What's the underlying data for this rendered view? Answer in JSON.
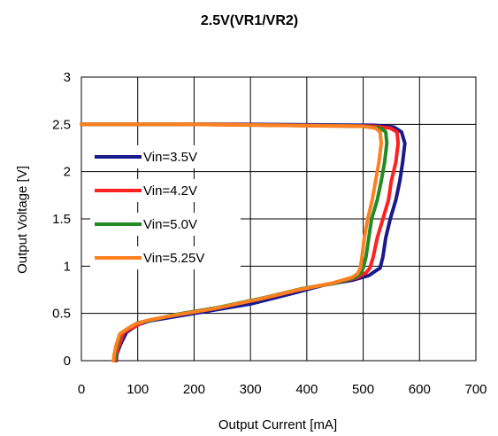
{
  "chart_data": {
    "type": "line",
    "title": "2.5V(VR1/VR2)",
    "xlabel": "Output Current [mA]",
    "ylabel": "Output Voltage [V]",
    "xlim": [
      0,
      700
    ],
    "ylim": [
      0,
      3
    ],
    "x_ticks": [
      0,
      100,
      200,
      300,
      400,
      500,
      600,
      700
    ],
    "y_ticks": [
      0,
      0.5,
      1,
      1.5,
      2,
      2.5,
      3
    ],
    "x_tick_labels": [
      "0",
      "100",
      "200",
      "300",
      "400",
      "500",
      "600",
      "700"
    ],
    "y_tick_labels": [
      "0",
      "0.5",
      "1",
      "1.5",
      "2",
      "2.5",
      "3"
    ],
    "grid": true,
    "legend_position": "left",
    "series": [
      {
        "name": "Vin=3.5V",
        "color": "#1a1a8c",
        "points": [
          [
            0,
            2.5
          ],
          [
            280,
            2.5
          ],
          [
            520,
            2.49
          ],
          [
            555,
            2.47
          ],
          [
            568,
            2.42
          ],
          [
            574,
            2.3
          ],
          [
            570,
            2.1
          ],
          [
            565,
            1.9
          ],
          [
            558,
            1.7
          ],
          [
            548,
            1.5
          ],
          [
            540,
            1.3
          ],
          [
            535,
            1.1
          ],
          [
            530,
            0.98
          ],
          [
            522,
            0.95
          ],
          [
            510,
            0.9
          ],
          [
            480,
            0.85
          ],
          [
            430,
            0.8
          ],
          [
            380,
            0.72
          ],
          [
            300,
            0.6
          ],
          [
            220,
            0.52
          ],
          [
            150,
            0.45
          ],
          [
            120,
            0.42
          ],
          [
            100,
            0.38
          ],
          [
            80,
            0.3
          ],
          [
            70,
            0.18
          ],
          [
            63,
            0.07
          ],
          [
            62,
            0
          ]
        ]
      },
      {
        "name": "Vin=4.2V",
        "color": "#ff2020",
        "points": [
          [
            0,
            2.5
          ],
          [
            230,
            2.5
          ],
          [
            520,
            2.48
          ],
          [
            548,
            2.46
          ],
          [
            560,
            2.42
          ],
          [
            562,
            2.3
          ],
          [
            558,
            2.1
          ],
          [
            550,
            1.9
          ],
          [
            545,
            1.7
          ],
          [
            535,
            1.5
          ],
          [
            525,
            1.3
          ],
          [
            518,
            1.1
          ],
          [
            512,
            0.98
          ],
          [
            505,
            0.93
          ],
          [
            490,
            0.88
          ],
          [
            450,
            0.82
          ],
          [
            400,
            0.77
          ],
          [
            330,
            0.67
          ],
          [
            250,
            0.57
          ],
          [
            180,
            0.5
          ],
          [
            130,
            0.44
          ],
          [
            110,
            0.41
          ],
          [
            95,
            0.36
          ],
          [
            75,
            0.3
          ],
          [
            68,
            0.18
          ],
          [
            62,
            0.07
          ],
          [
            61,
            0
          ]
        ]
      },
      {
        "name": "Vin=5.0V",
        "color": "#228b22",
        "points": [
          [
            0,
            2.5
          ],
          [
            200,
            2.5
          ],
          [
            500,
            2.48
          ],
          [
            530,
            2.46
          ],
          [
            540,
            2.42
          ],
          [
            542,
            2.3
          ],
          [
            538,
            2.1
          ],
          [
            532,
            1.9
          ],
          [
            525,
            1.7
          ],
          [
            515,
            1.5
          ],
          [
            510,
            1.3
          ],
          [
            505,
            1.1
          ],
          [
            500,
            0.98
          ],
          [
            495,
            0.92
          ],
          [
            485,
            0.88
          ],
          [
            450,
            0.82
          ],
          [
            390,
            0.76
          ],
          [
            320,
            0.66
          ],
          [
            240,
            0.56
          ],
          [
            170,
            0.49
          ],
          [
            125,
            0.43
          ],
          [
            100,
            0.4
          ],
          [
            85,
            0.35
          ],
          [
            70,
            0.29
          ],
          [
            64,
            0.18
          ],
          [
            60,
            0.07
          ],
          [
            59,
            0
          ]
        ]
      },
      {
        "name": "Vin=5.25V",
        "color": "#ff8020",
        "points": [
          [
            0,
            2.5
          ],
          [
            180,
            2.5
          ],
          [
            500,
            2.48
          ],
          [
            522,
            2.46
          ],
          [
            530,
            2.42
          ],
          [
            532,
            2.3
          ],
          [
            528,
            2.1
          ],
          [
            522,
            1.9
          ],
          [
            516,
            1.7
          ],
          [
            508,
            1.5
          ],
          [
            502,
            1.3
          ],
          [
            498,
            1.1
          ],
          [
            495,
            0.98
          ],
          [
            490,
            0.92
          ],
          [
            480,
            0.88
          ],
          [
            445,
            0.82
          ],
          [
            385,
            0.75
          ],
          [
            315,
            0.65
          ],
          [
            235,
            0.55
          ],
          [
            165,
            0.48
          ],
          [
            120,
            0.43
          ],
          [
            97,
            0.39
          ],
          [
            82,
            0.34
          ],
          [
            68,
            0.28
          ],
          [
            62,
            0.17
          ],
          [
            58,
            0.06
          ],
          [
            57,
            0
          ]
        ]
      }
    ]
  }
}
